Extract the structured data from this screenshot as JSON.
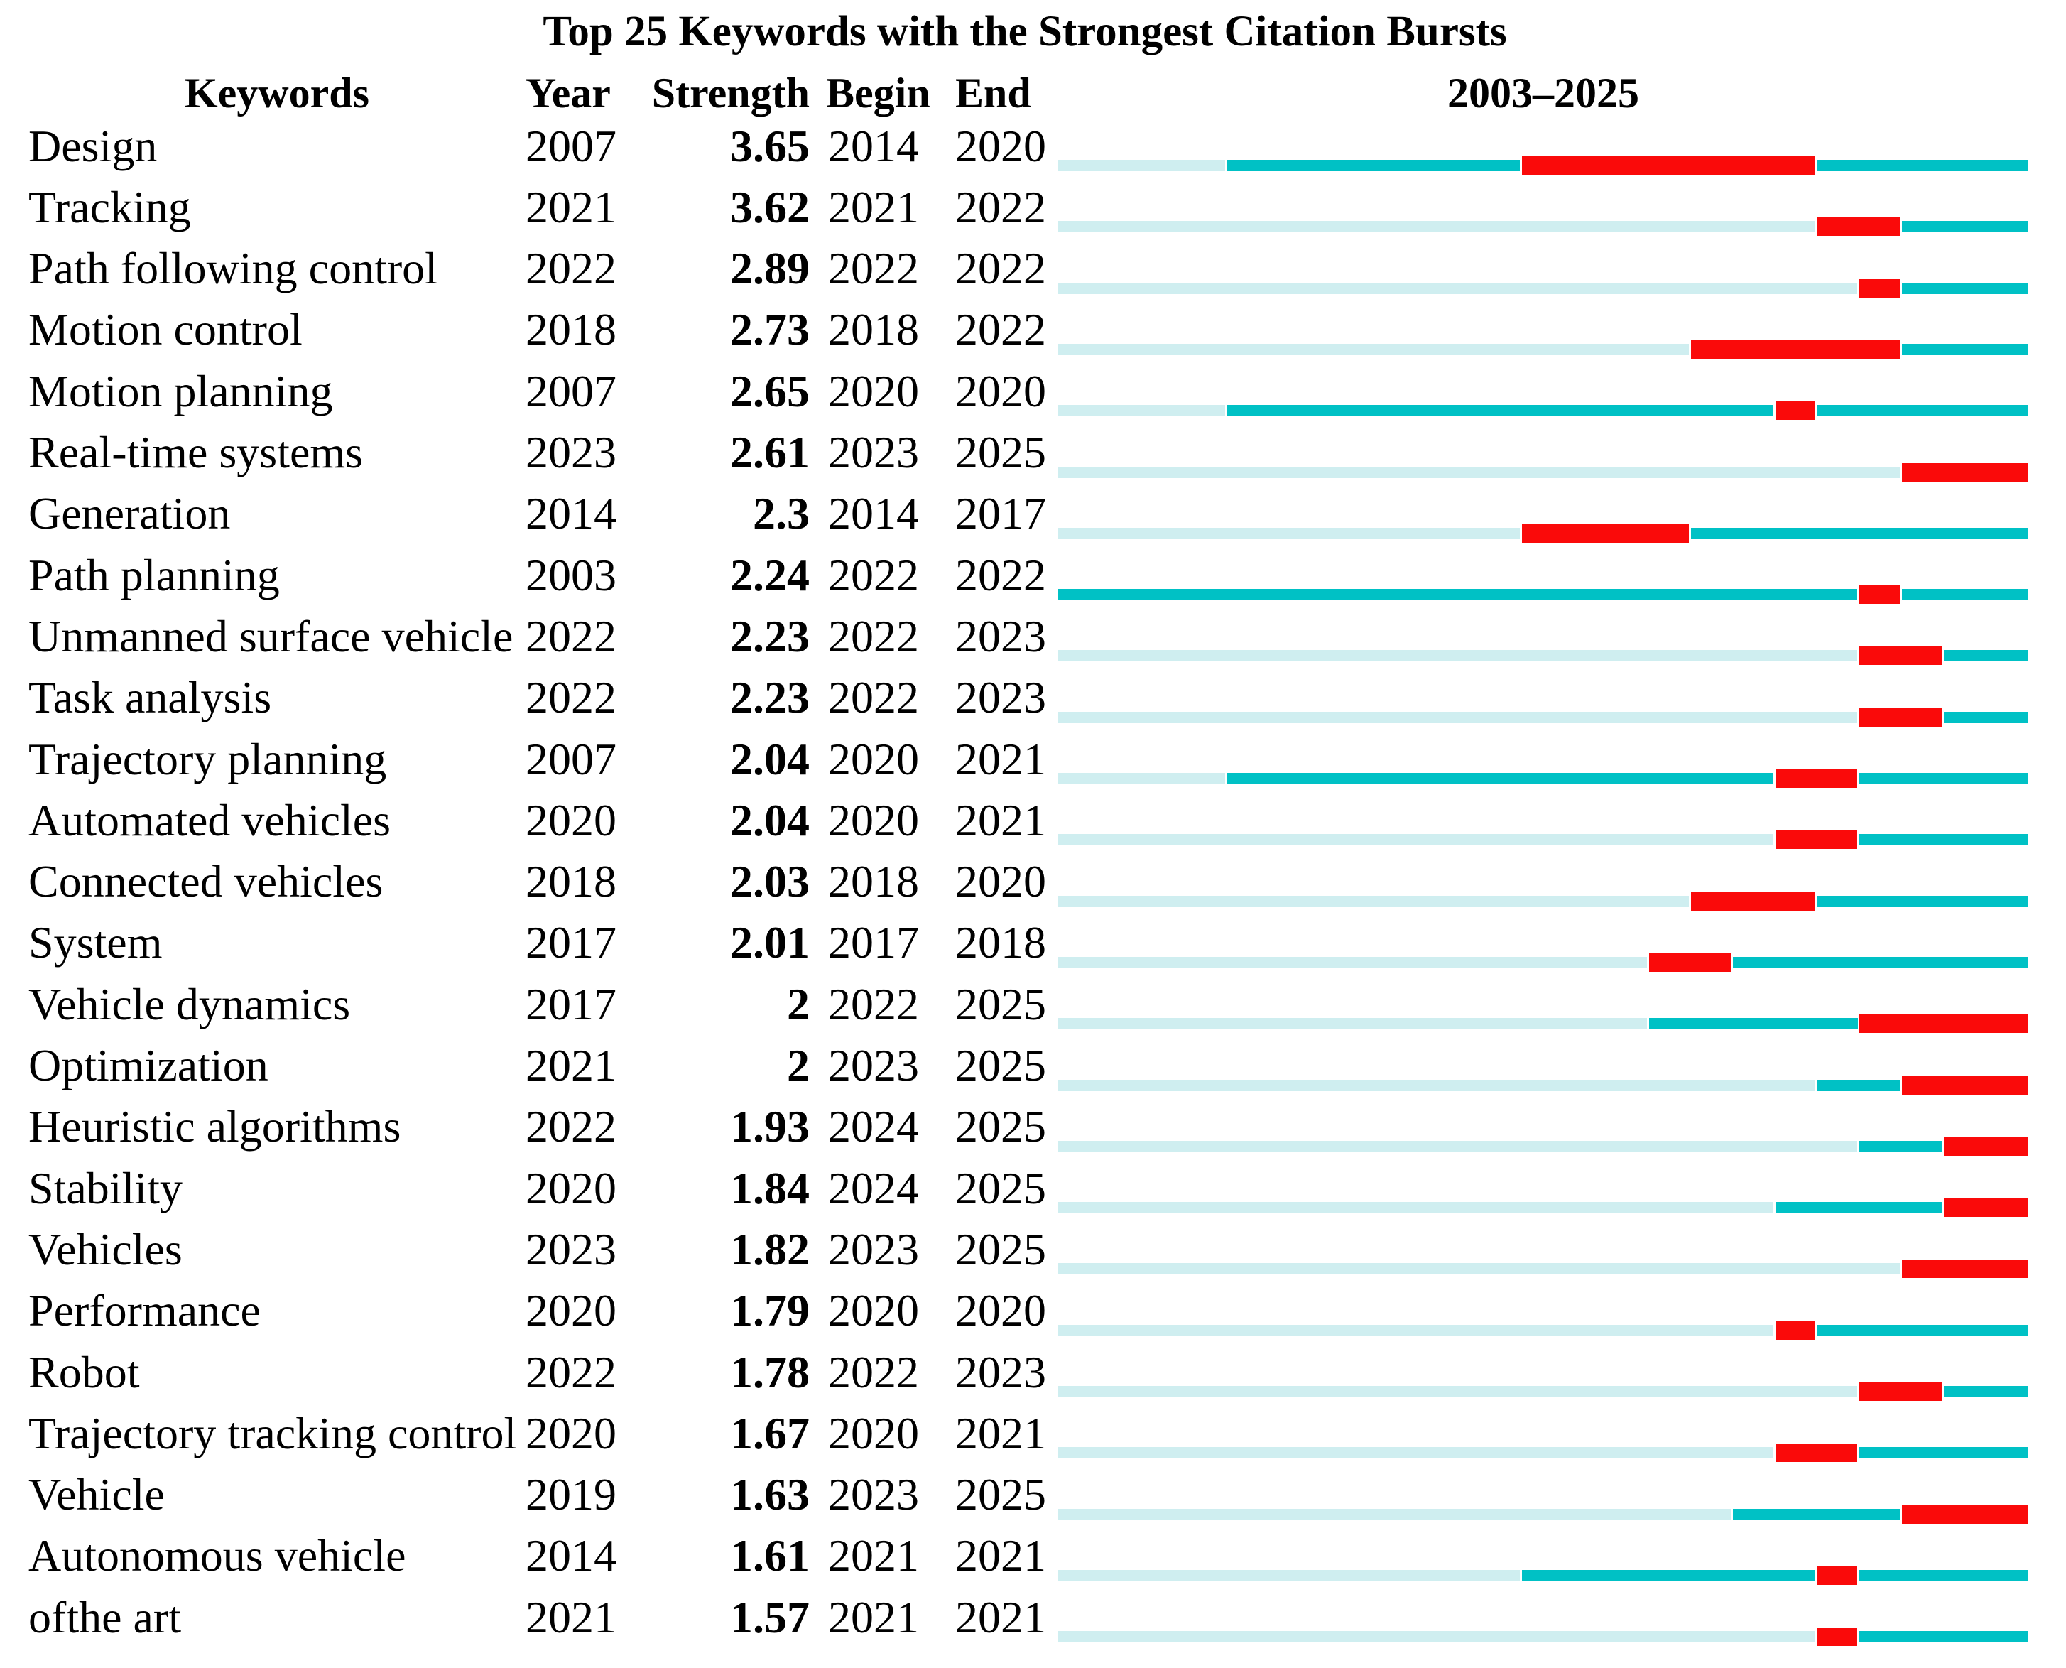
{
  "title": "Top 25 Keywords with the Strongest Citation Bursts",
  "headers": {
    "keywords": "Keywords",
    "year": "Year",
    "strength": "Strength",
    "begin": "Begin",
    "end": "End",
    "period": "2003–2025"
  },
  "chart_data": {
    "type": "bar",
    "title": "Top 25 Keywords with the Strongest Citation Bursts",
    "description": "CiteSpace-style citation burst timeline; pale bar = years before keyword first appearance, teal bar = active years, red bar = burst period (Begin–End inclusive)",
    "timeline": {
      "start": 2003,
      "end": 2025,
      "label": "2003–2025"
    },
    "colors": {
      "pre_appearance": "#cfeef0",
      "active": "#00c1c5",
      "burst": "#fa0a0a"
    },
    "rows": [
      {
        "keyword": "Design",
        "year": 2007,
        "strength": "3.65",
        "begin": 2014,
        "end": 2020
      },
      {
        "keyword": "Tracking",
        "year": 2021,
        "strength": "3.62",
        "begin": 2021,
        "end": 2022
      },
      {
        "keyword": "Path following control",
        "year": 2022,
        "strength": "2.89",
        "begin": 2022,
        "end": 2022
      },
      {
        "keyword": "Motion control",
        "year": 2018,
        "strength": "2.73",
        "begin": 2018,
        "end": 2022
      },
      {
        "keyword": "Motion planning",
        "year": 2007,
        "strength": "2.65",
        "begin": 2020,
        "end": 2020
      },
      {
        "keyword": "Real-time systems",
        "year": 2023,
        "strength": "2.61",
        "begin": 2023,
        "end": 2025
      },
      {
        "keyword": "Generation",
        "year": 2014,
        "strength": "2.3",
        "begin": 2014,
        "end": 2017
      },
      {
        "keyword": "Path planning",
        "year": 2003,
        "strength": "2.24",
        "begin": 2022,
        "end": 2022
      },
      {
        "keyword": "Unmanned surface vehicle",
        "year": 2022,
        "strength": "2.23",
        "begin": 2022,
        "end": 2023
      },
      {
        "keyword": "Task analysis",
        "year": 2022,
        "strength": "2.23",
        "begin": 2022,
        "end": 2023
      },
      {
        "keyword": "Trajectory planning",
        "year": 2007,
        "strength": "2.04",
        "begin": 2020,
        "end": 2021
      },
      {
        "keyword": "Automated vehicles",
        "year": 2020,
        "strength": "2.04",
        "begin": 2020,
        "end": 2021
      },
      {
        "keyword": "Connected vehicles",
        "year": 2018,
        "strength": "2.03",
        "begin": 2018,
        "end": 2020
      },
      {
        "keyword": "System",
        "year": 2017,
        "strength": "2.01",
        "begin": 2017,
        "end": 2018
      },
      {
        "keyword": "Vehicle dynamics",
        "year": 2017,
        "strength": "2",
        "begin": 2022,
        "end": 2025
      },
      {
        "keyword": "Optimization",
        "year": 2021,
        "strength": "2",
        "begin": 2023,
        "end": 2025
      },
      {
        "keyword": "Heuristic algorithms",
        "year": 2022,
        "strength": "1.93",
        "begin": 2024,
        "end": 2025
      },
      {
        "keyword": "Stability",
        "year": 2020,
        "strength": "1.84",
        "begin": 2024,
        "end": 2025
      },
      {
        "keyword": "Vehicles",
        "year": 2023,
        "strength": "1.82",
        "begin": 2023,
        "end": 2025
      },
      {
        "keyword": "Performance",
        "year": 2020,
        "strength": "1.79",
        "begin": 2020,
        "end": 2020
      },
      {
        "keyword": "Robot",
        "year": 2022,
        "strength": "1.78",
        "begin": 2022,
        "end": 2023
      },
      {
        "keyword": "Trajectory tracking control",
        "year": 2020,
        "strength": "1.67",
        "begin": 2020,
        "end": 2021
      },
      {
        "keyword": "Vehicle",
        "year": 2019,
        "strength": "1.63",
        "begin": 2023,
        "end": 2025
      },
      {
        "keyword": "Autonomous vehicle",
        "year": 2014,
        "strength": "1.61",
        "begin": 2021,
        "end": 2021
      },
      {
        "keyword": "ofthe art",
        "year": 2021,
        "strength": "1.57",
        "begin": 2021,
        "end": 2021
      }
    ]
  }
}
